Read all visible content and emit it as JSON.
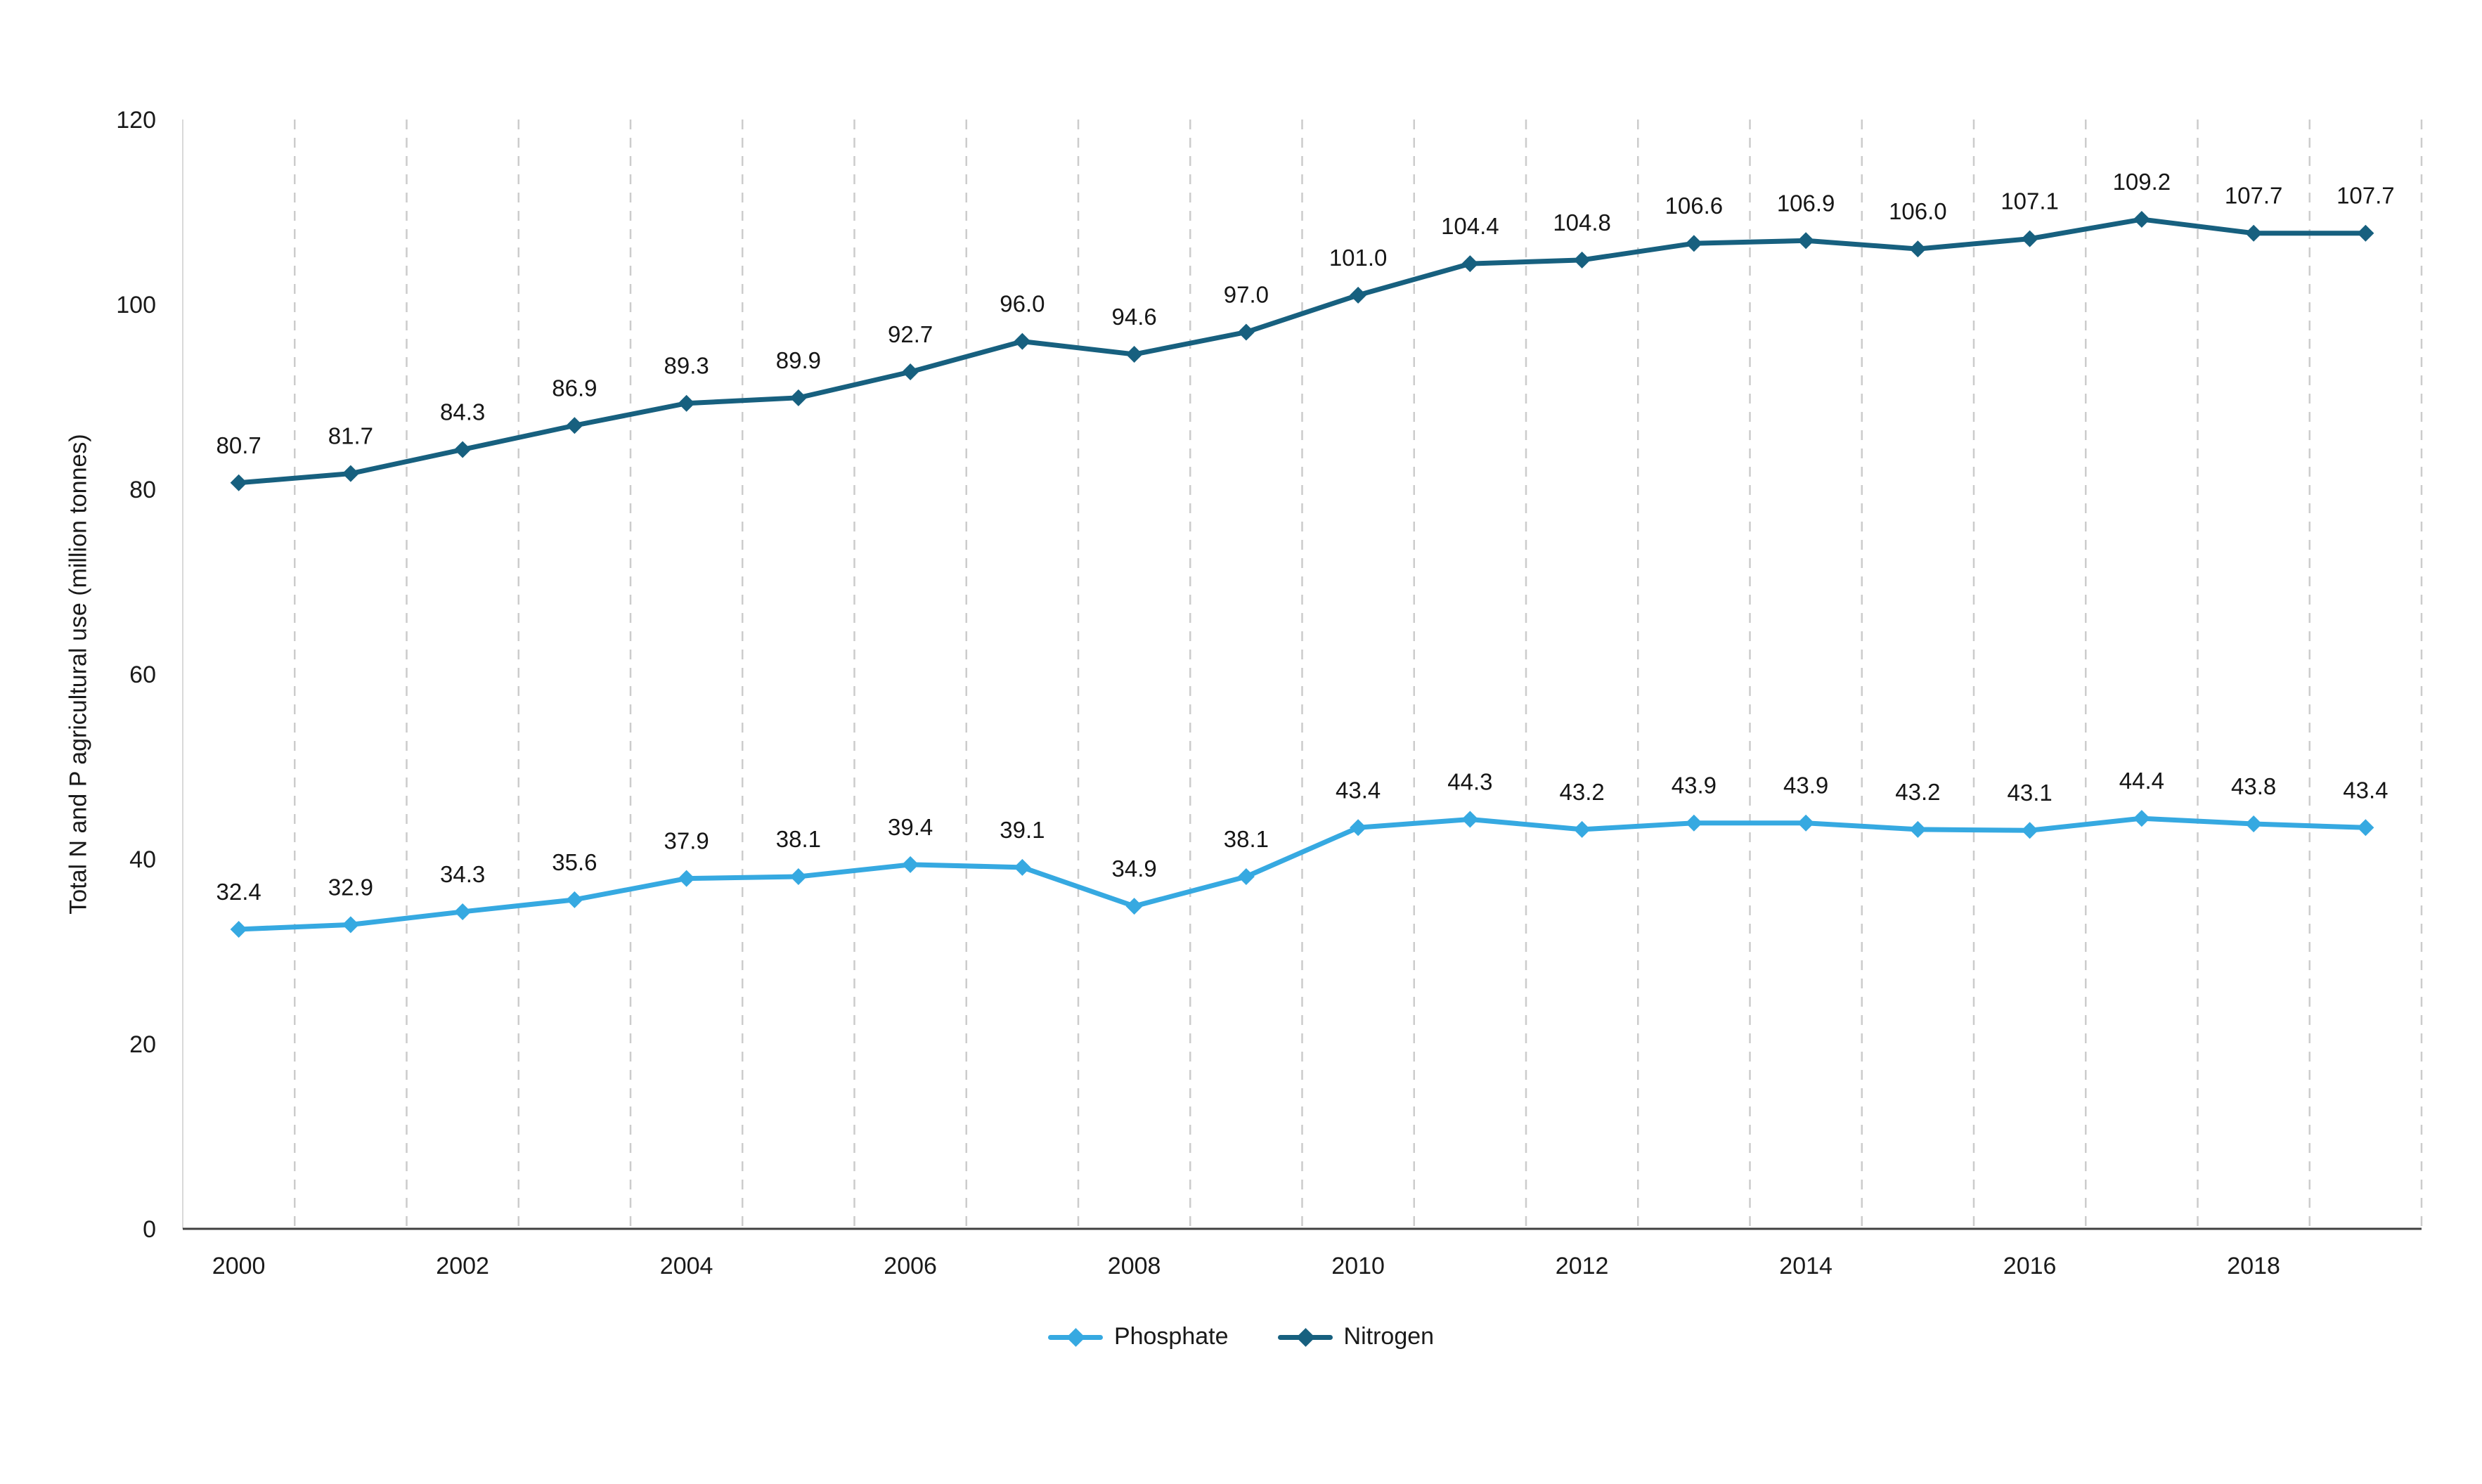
{
  "chart_data": {
    "type": "line",
    "title": "",
    "xlabel": "",
    "ylabel": "Total N and P agricultural use (million tonnes)",
    "x": [
      2000,
      2001,
      2002,
      2003,
      2004,
      2005,
      2006,
      2007,
      2008,
      2009,
      2010,
      2011,
      2012,
      2013,
      2014,
      2015,
      2016,
      2017,
      2018,
      2019
    ],
    "x_ticks": [
      2000,
      2002,
      2004,
      2006,
      2008,
      2010,
      2012,
      2014,
      2016,
      2018
    ],
    "ylim": [
      0,
      120
    ],
    "yticks": [
      0,
      20,
      40,
      60,
      80,
      100,
      120
    ],
    "grid": "vertical-dashed",
    "gridline_color": "#cccccc",
    "axis_line_color": "#404040",
    "marker": "diamond",
    "data_labels": true,
    "legend_position": "bottom",
    "series": [
      {
        "name": "Phosphate",
        "color": "#36A9E1",
        "values": [
          32.4,
          32.9,
          34.3,
          35.6,
          37.9,
          38.1,
          39.4,
          39.1,
          34.9,
          38.1,
          43.4,
          44.3,
          43.2,
          43.9,
          43.9,
          43.2,
          43.1,
          44.4,
          43.8,
          43.4
        ]
      },
      {
        "name": "Nitrogen",
        "color": "#17607F",
        "values": [
          80.7,
          81.7,
          84.3,
          86.9,
          89.3,
          89.9,
          92.7,
          96.0,
          94.6,
          97.0,
          101.0,
          104.4,
          104.8,
          106.6,
          106.9,
          106.0,
          107.1,
          109.2,
          107.7,
          107.7
        ]
      }
    ]
  }
}
